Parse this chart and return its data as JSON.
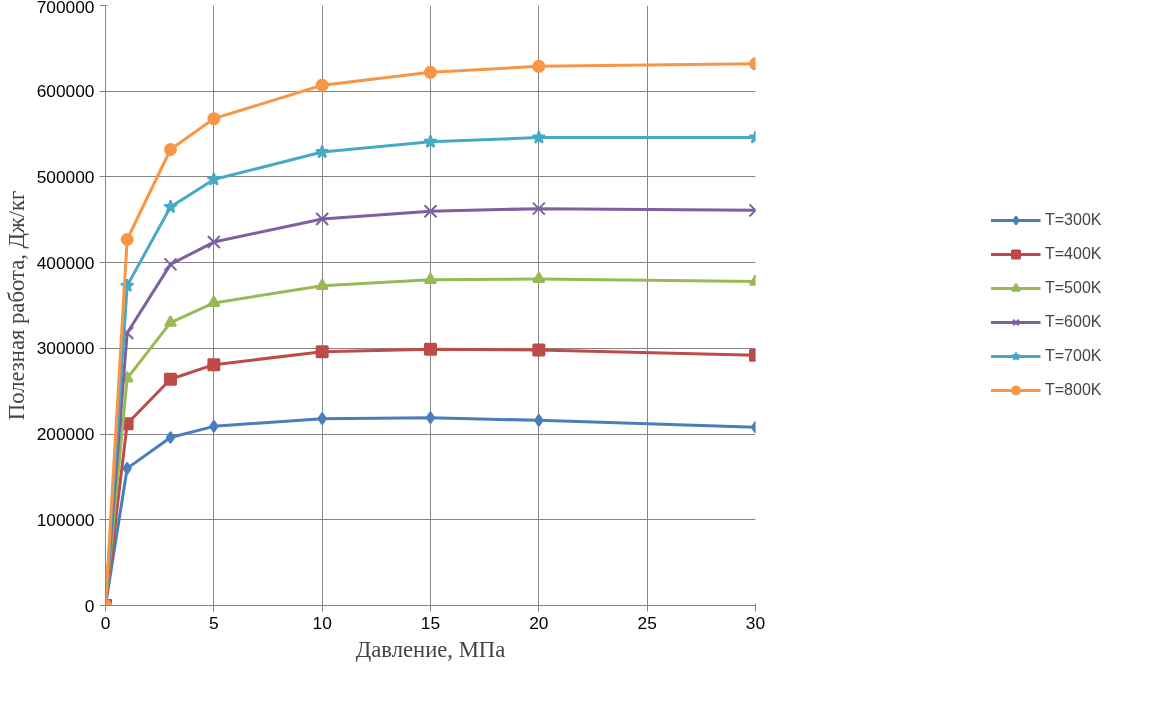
{
  "chart_data": {
    "type": "line",
    "xlabel": "Давление, МПа",
    "ylabel": "Полезная работа, Дж/кг",
    "x": [
      0,
      1,
      3,
      5,
      10,
      15,
      20,
      30
    ],
    "xlim": [
      0,
      30
    ],
    "xticks": [
      0,
      5,
      10,
      15,
      20,
      25,
      30
    ],
    "ylim": [
      0,
      700000
    ],
    "yticks": [
      0,
      100000,
      200000,
      300000,
      400000,
      500000,
      600000,
      700000
    ],
    "grid": true,
    "legend": "right",
    "line_style": "solid",
    "series": [
      {
        "name": "T=300K",
        "color": "#4a7ebb",
        "marker": "diamond",
        "values": [
          0,
          160000,
          196000,
          209000,
          218000,
          219000,
          216000,
          208000
        ]
      },
      {
        "name": "T=400K",
        "color": "#be4b48",
        "marker": "square",
        "values": [
          0,
          212000,
          264000,
          281000,
          296000,
          299000,
          298000,
          292000
        ]
      },
      {
        "name": "T=500K",
        "color": "#98b954",
        "marker": "triangle",
        "values": [
          0,
          265000,
          330000,
          353000,
          373000,
          380000,
          381000,
          378000
        ]
      },
      {
        "name": "T=600K",
        "color": "#7d60a0",
        "marker": "cross",
        "values": [
          0,
          318000,
          398000,
          424000,
          451000,
          460000,
          463000,
          461000
        ]
      },
      {
        "name": "T=700K",
        "color": "#46aac5",
        "marker": "star",
        "values": [
          0,
          373000,
          465000,
          497000,
          529000,
          541000,
          546000,
          546000
        ]
      },
      {
        "name": "T=800K",
        "color": "#f79646",
        "marker": "circle",
        "values": [
          0,
          427000,
          532000,
          568000,
          607000,
          622000,
          629000,
          632000
        ]
      }
    ]
  }
}
